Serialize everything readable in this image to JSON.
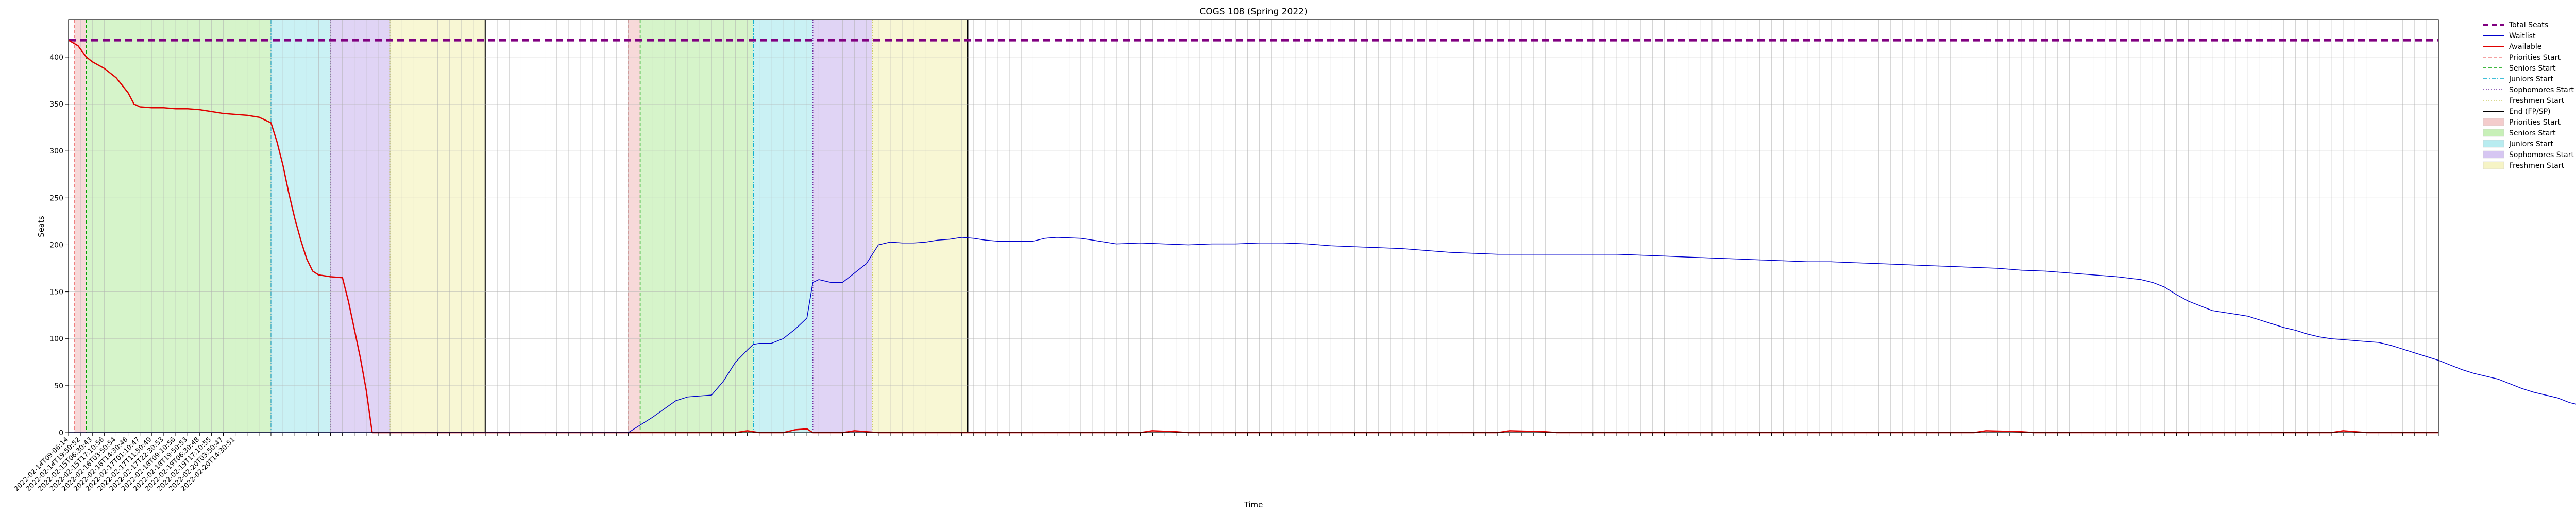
{
  "chart_data": {
    "type": "line",
    "title": "COGS 108 (Spring 2022)",
    "xlabel": "Time",
    "ylabel": "Seats",
    "ylim": [
      0,
      440
    ],
    "yticks": [
      0,
      50,
      100,
      150,
      200,
      250,
      300,
      350,
      400
    ],
    "grid": true,
    "legend_position": "outside-right",
    "x_count": 200,
    "x_ticks_visible": [
      "2022-02-14T09:06:14",
      "2022-02-14T19:50:52",
      "2022-02-15T06:30:43",
      "2022-02-15T17:10:56",
      "2022-02-16T03:50:54",
      "2022-02-16T14:30:46",
      "2022-02-17T01:10:47",
      "2022-02-17T11:50:49",
      "2022-02-17T22:30:53",
      "2022-02-18T09:10:56",
      "2022-02-18T19:50:53",
      "2022-02-19T06:30:48",
      "2022-02-19T17:10:55",
      "2022-02-20T03:50:47",
      "2022-02-20T14:30:51"
    ],
    "periods": [
      {
        "name": "Priorities Start",
        "start": 0.5,
        "end": 1.5,
        "color": "#f4cccc"
      },
      {
        "name": "Seniors Start",
        "start": 1.5,
        "end": 17,
        "color": "#c8f0b8"
      },
      {
        "name": "Juniors Start",
        "start": 17,
        "end": 22,
        "color": "#b8ecf0"
      },
      {
        "name": "Sophomores Start",
        "start": 22,
        "end": 27,
        "color": "#d6c6f2"
      },
      {
        "name": "Freshmen Start",
        "start": 27,
        "end": 35,
        "color": "#f6f4c6"
      },
      {
        "name": "Priorities Start",
        "start": 47,
        "end": 48,
        "color": "#f4cccc"
      },
      {
        "name": "Seniors Start",
        "start": 48,
        "end": 57.5,
        "color": "#c8f0b8"
      },
      {
        "name": "Juniors Start",
        "start": 57.5,
        "end": 62.5,
        "color": "#b8ecf0"
      },
      {
        "name": "Sophomores Start",
        "start": 62.5,
        "end": 67.5,
        "color": "#d6c6f2"
      },
      {
        "name": "Freshmen Start",
        "start": 67.5,
        "end": 75.5,
        "color": "#f6f4c6"
      }
    ],
    "end_lines": [
      35,
      75.5
    ],
    "total_seats": 418,
    "series": [
      {
        "name": "Total Seats",
        "color": "#800080",
        "style": "dashed",
        "points": [
          [
            0,
            418
          ],
          [
            199,
            418
          ]
        ]
      },
      {
        "name": "Available",
        "color": "#e00000",
        "style": "solid",
        "points": [
          [
            0,
            418
          ],
          [
            0.8,
            412
          ],
          [
            1.5,
            400
          ],
          [
            2,
            395
          ],
          [
            3,
            388
          ],
          [
            4,
            378
          ],
          [
            5,
            362
          ],
          [
            5.5,
            350
          ],
          [
            6,
            347
          ],
          [
            7,
            346
          ],
          [
            8,
            346
          ],
          [
            9,
            345
          ],
          [
            10,
            345
          ],
          [
            11,
            344
          ],
          [
            12,
            342
          ],
          [
            13,
            340
          ],
          [
            14,
            339
          ],
          [
            15,
            338
          ],
          [
            16,
            336
          ],
          [
            17,
            330
          ],
          [
            17.5,
            310
          ],
          [
            18,
            285
          ],
          [
            18.5,
            255
          ],
          [
            19,
            228
          ],
          [
            19.5,
            205
          ],
          [
            20,
            185
          ],
          [
            20.5,
            172
          ],
          [
            21,
            168
          ],
          [
            22,
            166
          ],
          [
            23,
            165
          ],
          [
            23.5,
            140
          ],
          [
            24,
            110
          ],
          [
            24.5,
            80
          ],
          [
            25,
            45
          ],
          [
            25.5,
            0
          ],
          [
            35,
            0
          ],
          [
            56,
            0
          ],
          [
            57,
            2
          ],
          [
            58,
            0
          ],
          [
            60,
            0
          ],
          [
            61,
            3
          ],
          [
            62,
            4
          ],
          [
            62.5,
            0
          ],
          [
            65,
            0
          ],
          [
            66,
            2
          ],
          [
            67,
            1
          ],
          [
            68,
            0
          ],
          [
            90,
            0
          ],
          [
            91,
            2
          ],
          [
            93,
            1
          ],
          [
            94,
            0
          ],
          [
            120,
            0
          ],
          [
            121,
            2
          ],
          [
            124,
            1
          ],
          [
            125,
            0
          ],
          [
            160,
            0
          ],
          [
            161,
            2
          ],
          [
            164,
            1
          ],
          [
            165,
            0
          ],
          [
            190,
            0
          ],
          [
            191,
            2
          ],
          [
            193,
            0
          ],
          [
            199,
            0
          ]
        ]
      },
      {
        "name": "Waitlist",
        "color": "#0000cc",
        "style": "solid",
        "points": [
          [
            0,
            0
          ],
          [
            47,
            0
          ],
          [
            48,
            8
          ],
          [
            49,
            16
          ],
          [
            50,
            25
          ],
          [
            51,
            34
          ],
          [
            52,
            38
          ],
          [
            53,
            39
          ],
          [
            54,
            40
          ],
          [
            55,
            55
          ],
          [
            56,
            75
          ],
          [
            57,
            88
          ],
          [
            57.5,
            94
          ],
          [
            58,
            95
          ],
          [
            59,
            95
          ],
          [
            60,
            100
          ],
          [
            61,
            110
          ],
          [
            62,
            122
          ],
          [
            62.5,
            160
          ],
          [
            63,
            163
          ],
          [
            64,
            160
          ],
          [
            65,
            160
          ],
          [
            66,
            170
          ],
          [
            67,
            180
          ],
          [
            68,
            200
          ],
          [
            69,
            203
          ],
          [
            70,
            202
          ],
          [
            71,
            202
          ],
          [
            72,
            203
          ],
          [
            73,
            205
          ],
          [
            74,
            206
          ],
          [
            75,
            208
          ],
          [
            76,
            207
          ],
          [
            77,
            205
          ],
          [
            78,
            204
          ],
          [
            80,
            204
          ],
          [
            81,
            204
          ],
          [
            82,
            207
          ],
          [
            83,
            208
          ],
          [
            85,
            207
          ],
          [
            86,
            205
          ],
          [
            87,
            203
          ],
          [
            88,
            201
          ],
          [
            90,
            202
          ],
          [
            92,
            201
          ],
          [
            94,
            200
          ],
          [
            96,
            201
          ],
          [
            98,
            201
          ],
          [
            100,
            202
          ],
          [
            102,
            202
          ],
          [
            104,
            201
          ],
          [
            106,
            199
          ],
          [
            108,
            198
          ],
          [
            110,
            197
          ],
          [
            112,
            196
          ],
          [
            114,
            194
          ],
          [
            116,
            192
          ],
          [
            118,
            191
          ],
          [
            120,
            190
          ],
          [
            122,
            190
          ],
          [
            124,
            190
          ],
          [
            126,
            190
          ],
          [
            128,
            190
          ],
          [
            130,
            190
          ],
          [
            132,
            189
          ],
          [
            134,
            188
          ],
          [
            136,
            187
          ],
          [
            138,
            186
          ],
          [
            140,
            185
          ],
          [
            142,
            184
          ],
          [
            144,
            183
          ],
          [
            146,
            182
          ],
          [
            148,
            182
          ],
          [
            150,
            181
          ],
          [
            152,
            180
          ],
          [
            154,
            179
          ],
          [
            156,
            178
          ],
          [
            158,
            177
          ],
          [
            160,
            176
          ],
          [
            162,
            175
          ],
          [
            164,
            173
          ],
          [
            166,
            172
          ],
          [
            168,
            170
          ],
          [
            170,
            168
          ],
          [
            172,
            166
          ],
          [
            174,
            163
          ],
          [
            175,
            160
          ],
          [
            176,
            155
          ],
          [
            177,
            147
          ],
          [
            178,
            140
          ],
          [
            179,
            135
          ],
          [
            180,
            130
          ],
          [
            181,
            128
          ],
          [
            182,
            126
          ],
          [
            183,
            124
          ],
          [
            184,
            120
          ],
          [
            185,
            116
          ],
          [
            186,
            112
          ],
          [
            187,
            109
          ],
          [
            188,
            105
          ],
          [
            189,
            102
          ],
          [
            190,
            100
          ],
          [
            191,
            99
          ],
          [
            192,
            98
          ],
          [
            193,
            97
          ],
          [
            194,
            96
          ],
          [
            195,
            93
          ],
          [
            196,
            89
          ],
          [
            197,
            85
          ],
          [
            198,
            81
          ],
          [
            199,
            77
          ],
          [
            200,
            72
          ],
          [
            201,
            67
          ],
          [
            202,
            63
          ],
          [
            203,
            60
          ],
          [
            204,
            57
          ],
          [
            205,
            52
          ],
          [
            206,
            47
          ],
          [
            207,
            43
          ],
          [
            208,
            40
          ],
          [
            209,
            37
          ],
          [
            210,
            32
          ],
          [
            211,
            29
          ]
        ]
      }
    ],
    "legend": [
      {
        "label": "Total Seats",
        "kind": "line",
        "color": "#800080",
        "dash": "10,6",
        "width": 4
      },
      {
        "label": "Waitlist",
        "kind": "line",
        "color": "#0000cc",
        "dash": "",
        "width": 2
      },
      {
        "label": "Available",
        "kind": "line",
        "color": "#e00000",
        "dash": "",
        "width": 2
      },
      {
        "label": "Priorities Start",
        "kind": "line",
        "color": "#f08080",
        "dash": "6,4",
        "width": 1.5
      },
      {
        "label": "Seniors Start",
        "kind": "line",
        "color": "#00a000",
        "dash": "6,4",
        "width": 1.5
      },
      {
        "label": "Juniors Start",
        "kind": "line",
        "color": "#00aacc",
        "dash": "8,3,2,3",
        "width": 1.5
      },
      {
        "label": "Sophomores Start",
        "kind": "line",
        "color": "#7030a0",
        "dash": "2,3",
        "width": 1.5
      },
      {
        "label": "Freshmen Start",
        "kind": "line",
        "color": "#cccc66",
        "dash": "2,3",
        "width": 1.5
      },
      {
        "label": "End (FP/SP)",
        "kind": "line",
        "color": "#000000",
        "dash": "",
        "width": 2
      },
      {
        "label": "Priorities Start",
        "kind": "patch",
        "color": "#f4cccc"
      },
      {
        "label": "Seniors Start",
        "kind": "patch",
        "color": "#c8f0b8"
      },
      {
        "label": "Juniors Start",
        "kind": "patch",
        "color": "#b8ecf0"
      },
      {
        "label": "Sophomores Start",
        "kind": "patch",
        "color": "#d6c6f2"
      },
      {
        "label": "Freshmen Start",
        "kind": "patch",
        "color": "#f6f4c6"
      }
    ]
  }
}
